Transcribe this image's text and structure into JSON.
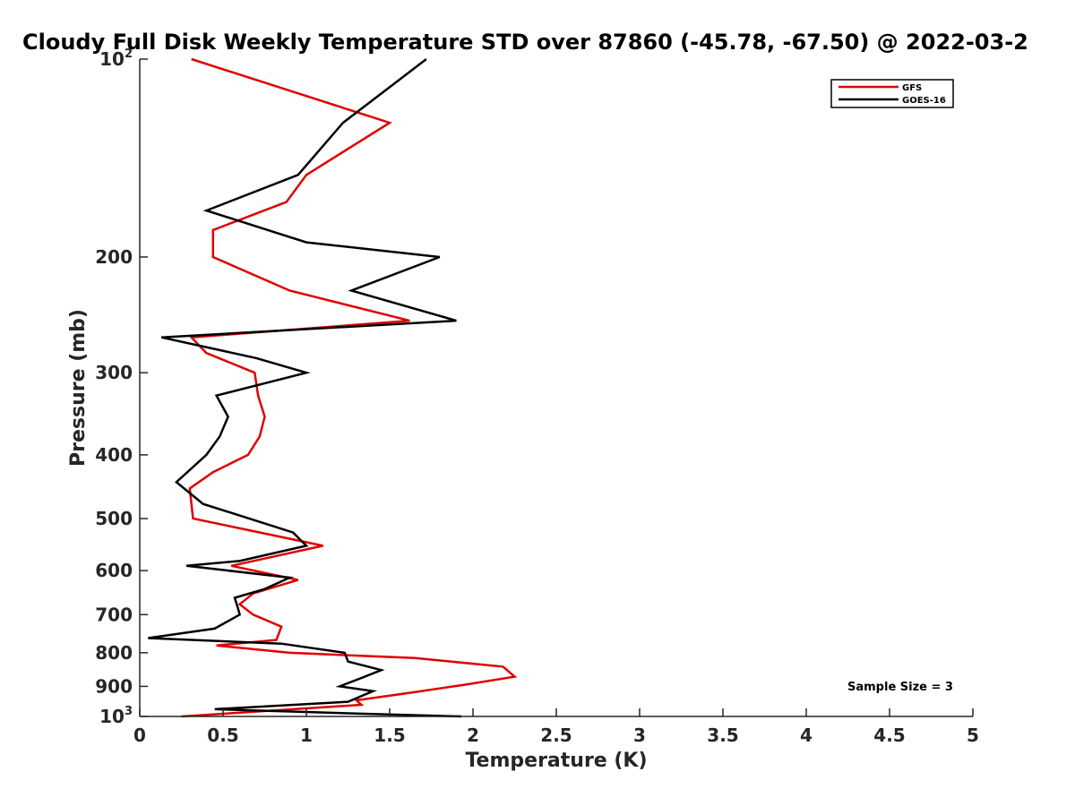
{
  "chart_data": {
    "type": "line",
    "title": "Cloudy Full Disk Weekly Temperature STD over 87860 (-45.78, -67.50) @ 2022-03-2",
    "xlabel": "Temperature (K)",
    "ylabel": "Pressure (mb)",
    "xlim": [
      0,
      5
    ],
    "ylim": [
      100,
      1000
    ],
    "y_scale": "log",
    "y_reversed": true,
    "grid": false,
    "legend_location": "top-right",
    "annotation": "Sample Size = 3",
    "x_ticks": [
      {
        "value": 0,
        "label": "0"
      },
      {
        "value": 0.5,
        "label": "0.5"
      },
      {
        "value": 1,
        "label": "1"
      },
      {
        "value": 1.5,
        "label": "1.5"
      },
      {
        "value": 2,
        "label": "2"
      },
      {
        "value": 2.5,
        "label": "2.5"
      },
      {
        "value": 3,
        "label": "3"
      },
      {
        "value": 3.5,
        "label": "3.5"
      },
      {
        "value": 4,
        "label": "4"
      },
      {
        "value": 4.5,
        "label": "4.5"
      },
      {
        "value": 5,
        "label": "5"
      }
    ],
    "y_ticks": [
      {
        "value": 100,
        "base": "10",
        "exp": "2"
      },
      {
        "value": 200,
        "label": "200"
      },
      {
        "value": 300,
        "label": "300"
      },
      {
        "value": 400,
        "label": "400"
      },
      {
        "value": 500,
        "label": "500"
      },
      {
        "value": 600,
        "label": "600"
      },
      {
        "value": 700,
        "label": "700"
      },
      {
        "value": 800,
        "label": "800"
      },
      {
        "value": 900,
        "label": "900"
      },
      {
        "value": 1000,
        "base": "10",
        "exp": "3"
      }
    ],
    "series": [
      {
        "name": "GFS",
        "color": "#e00000",
        "points": [
          [
            0.31,
            100
          ],
          [
            1.5,
            125
          ],
          [
            1.0,
            150
          ],
          [
            0.88,
            165
          ],
          [
            0.44,
            182
          ],
          [
            0.44,
            200
          ],
          [
            0.9,
            225
          ],
          [
            1.62,
            250
          ],
          [
            0.31,
            265
          ],
          [
            0.4,
            280
          ],
          [
            0.69,
            300
          ],
          [
            0.71,
            325
          ],
          [
            0.75,
            350
          ],
          [
            0.72,
            375
          ],
          [
            0.65,
            400
          ],
          [
            0.44,
            425
          ],
          [
            0.3,
            450
          ],
          [
            0.32,
            500
          ],
          [
            1.1,
            550
          ],
          [
            0.55,
            590
          ],
          [
            0.95,
            620
          ],
          [
            0.68,
            650
          ],
          [
            0.6,
            675
          ],
          [
            0.68,
            700
          ],
          [
            0.85,
            730
          ],
          [
            0.82,
            765
          ],
          [
            0.46,
            780
          ],
          [
            0.9,
            800
          ],
          [
            1.65,
            815
          ],
          [
            2.18,
            840
          ],
          [
            2.25,
            870
          ],
          [
            1.95,
            895
          ],
          [
            1.63,
            920
          ],
          [
            1.3,
            945
          ],
          [
            1.33,
            960
          ],
          [
            0.25,
            1000
          ]
        ]
      },
      {
        "name": "GOES-16",
        "color": "#000000",
        "points": [
          [
            1.72,
            100
          ],
          [
            1.22,
            125
          ],
          [
            0.95,
            150
          ],
          [
            0.4,
            170
          ],
          [
            1.0,
            190
          ],
          [
            1.8,
            200
          ],
          [
            1.27,
            225
          ],
          [
            1.9,
            250
          ],
          [
            0.13,
            265
          ],
          [
            0.7,
            285
          ],
          [
            1.0,
            300
          ],
          [
            0.46,
            325
          ],
          [
            0.53,
            350
          ],
          [
            0.48,
            375
          ],
          [
            0.4,
            400
          ],
          [
            0.22,
            440
          ],
          [
            0.38,
            475
          ],
          [
            0.92,
            525
          ],
          [
            1.0,
            550
          ],
          [
            0.6,
            580
          ],
          [
            0.28,
            590
          ],
          [
            0.9,
            615
          ],
          [
            0.75,
            640
          ],
          [
            0.57,
            660
          ],
          [
            0.59,
            685
          ],
          [
            0.6,
            700
          ],
          [
            0.45,
            735
          ],
          [
            0.05,
            760
          ],
          [
            0.85,
            775
          ],
          [
            1.23,
            800
          ],
          [
            1.25,
            825
          ],
          [
            1.45,
            850
          ],
          [
            1.35,
            870
          ],
          [
            1.2,
            900
          ],
          [
            1.4,
            915
          ],
          [
            1.25,
            950
          ],
          [
            0.45,
            975
          ],
          [
            1.3,
            990
          ],
          [
            1.93,
            1000
          ]
        ]
      }
    ]
  }
}
